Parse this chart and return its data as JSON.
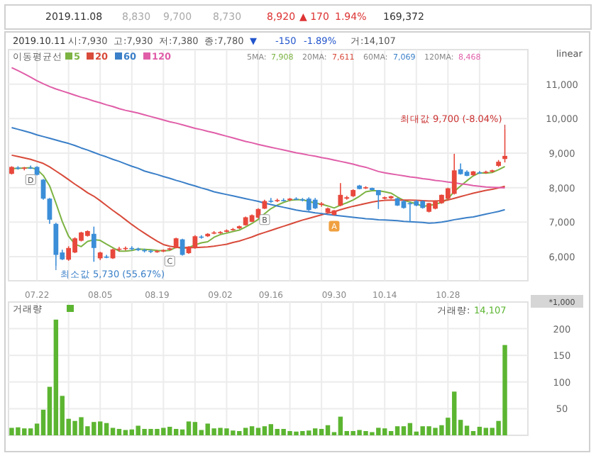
{
  "chart_data": [
    {
      "type": "candlestick",
      "categories": [
        null,
        null,
        null,
        null,
        "07.22",
        null,
        null,
        null,
        null,
        null,
        null,
        null,
        null,
        null,
        "08.05",
        null,
        null,
        null,
        null,
        null,
        null,
        null,
        null,
        "08.19",
        null,
        null,
        null,
        null,
        null,
        null,
        null,
        null,
        null,
        "09.02",
        null,
        null,
        null,
        null,
        null,
        null,
        null,
        "09.16",
        null,
        null,
        null,
        null,
        null,
        null,
        null,
        null,
        null,
        "09.30",
        null,
        null,
        null,
        null,
        null,
        null,
        null,
        "10.14",
        null,
        null,
        null,
        null,
        null,
        null,
        null,
        null,
        null,
        "10.28",
        null,
        null,
        null,
        null,
        null,
        null,
        null,
        null,
        null
      ],
      "ohlc": [
        [
          8400,
          8620,
          8380,
          8600
        ],
        [
          8580,
          8620,
          8520,
          8560
        ],
        [
          8560,
          8600,
          8500,
          8580
        ],
        [
          8580,
          8640,
          8540,
          8560
        ],
        [
          8600,
          8620,
          8350,
          8370
        ],
        [
          8230,
          8250,
          7650,
          7680
        ],
        [
          7680,
          7700,
          6950,
          7070
        ],
        [
          6950,
          6980,
          5730,
          6050
        ],
        [
          6120,
          6200,
          5900,
          5920
        ],
        [
          5910,
          6300,
          5880,
          6250
        ],
        [
          6120,
          6560,
          6100,
          6530
        ],
        [
          6460,
          6720,
          6440,
          6700
        ],
        [
          6600,
          6760,
          6580,
          6740
        ],
        [
          6660,
          6870,
          5850,
          6250
        ],
        [
          5950,
          6140,
          5900,
          6120
        ],
        [
          6000,
          6050,
          5950,
          5990
        ],
        [
          5950,
          6230,
          5930,
          6210
        ],
        [
          6200,
          6280,
          6150,
          6230
        ],
        [
          6240,
          6290,
          6180,
          6250
        ],
        [
          6250,
          6300,
          6180,
          6220
        ],
        [
          6230,
          6260,
          6160,
          6190
        ],
        [
          6190,
          6230,
          6120,
          6170
        ],
        [
          6170,
          6200,
          6100,
          6150
        ],
        [
          6150,
          6190,
          6110,
          6160
        ],
        [
          6150,
          6210,
          6130,
          6190
        ],
        [
          6200,
          6260,
          6180,
          6240
        ],
        [
          6250,
          6550,
          6240,
          6530
        ],
        [
          6500,
          6520,
          6030,
          6050
        ],
        [
          6100,
          6300,
          6080,
          6290
        ],
        [
          6250,
          6620,
          6230,
          6590
        ],
        [
          6580,
          6620,
          6520,
          6560
        ],
        [
          6590,
          6680,
          6570,
          6660
        ],
        [
          6680,
          6740,
          6650,
          6700
        ],
        [
          6700,
          6740,
          6660,
          6710
        ],
        [
          6720,
          6790,
          6700,
          6760
        ],
        [
          6770,
          6830,
          6750,
          6800
        ],
        [
          6820,
          6900,
          6800,
          6880
        ],
        [
          6910,
          7160,
          6900,
          7140
        ],
        [
          7010,
          7220,
          7000,
          7200
        ],
        [
          7130,
          7400,
          7110,
          7380
        ],
        [
          7390,
          7650,
          7380,
          7610
        ],
        [
          7620,
          7700,
          7560,
          7610
        ],
        [
          7610,
          7680,
          7580,
          7640
        ],
        [
          7640,
          7690,
          7600,
          7630
        ],
        [
          7640,
          7700,
          7610,
          7680
        ],
        [
          7680,
          7720,
          7640,
          7660
        ],
        [
          7660,
          7700,
          7600,
          7640
        ],
        [
          7680,
          7720,
          7320,
          7350
        ],
        [
          7650,
          7700,
          7380,
          7400
        ],
        [
          7500,
          7580,
          7450,
          7540
        ],
        [
          7280,
          7420,
          7250,
          7400
        ],
        [
          7210,
          7350,
          7190,
          7340
        ],
        [
          7480,
          8130,
          7460,
          7790
        ],
        [
          7680,
          7760,
          7650,
          7720
        ],
        [
          7750,
          7950,
          7730,
          7930
        ],
        [
          8060,
          8080,
          7950,
          7960
        ],
        [
          7990,
          8040,
          7960,
          8010
        ],
        [
          7990,
          8000,
          7920,
          7930
        ],
        [
          7930,
          7930,
          7380,
          7780
        ],
        [
          7680,
          7740,
          7660,
          7720
        ],
        [
          7690,
          7760,
          7670,
          7750
        ],
        [
          7690,
          7710,
          7470,
          7480
        ],
        [
          7610,
          7640,
          7390,
          7410
        ],
        [
          7550,
          7580,
          7000,
          7540
        ],
        [
          7610,
          7640,
          7460,
          7480
        ],
        [
          7610,
          7630,
          7390,
          7410
        ],
        [
          7300,
          7560,
          7280,
          7550
        ],
        [
          7390,
          7630,
          7370,
          7610
        ],
        [
          7550,
          7800,
          7530,
          7790
        ],
        [
          7680,
          8000,
          7660,
          7980
        ],
        [
          7820,
          8980,
          7800,
          8500
        ],
        [
          8530,
          8700,
          8380,
          8390
        ],
        [
          8460,
          8500,
          8330,
          8340
        ],
        [
          8360,
          8480,
          8340,
          8470
        ],
        [
          8440,
          8480,
          8400,
          8430
        ],
        [
          8430,
          8490,
          8410,
          8460
        ],
        [
          8460,
          8520,
          8440,
          8500
        ],
        [
          8630,
          8800,
          8600,
          8750
        ],
        [
          8830,
          9700,
          8730,
          8920
        ]
      ],
      "series": [
        {
          "name": "5",
          "type": "line",
          "color": "#7cb342",
          "values": [
            8550,
            8560,
            8570,
            8580,
            8530,
            8350,
            8050,
            7550,
            7020,
            6590,
            6360,
            6290,
            6440,
            6490,
            6470,
            6360,
            6260,
            6160,
            6160,
            6180,
            6220,
            6210,
            6200,
            6180,
            6170,
            6180,
            6270,
            6240,
            6260,
            6340,
            6400,
            6430,
            6560,
            6640,
            6680,
            6730,
            6770,
            6860,
            6960,
            7080,
            7240,
            7390,
            7490,
            7570,
            7630,
            7650,
            7650,
            7600,
            7550,
            7520,
            7470,
            7410,
            7490,
            7560,
            7640,
            7750,
            7880,
            7910,
            7908,
            7880,
            7840,
            7730,
            7630,
            7580,
            7530,
            7460,
            7480,
            7520,
            7570,
            7670,
            7890,
            8050,
            8200,
            8340,
            8430,
            8420,
            8440,
            8520,
            8610
          ]
        },
        {
          "name": "20",
          "type": "line",
          "color": "#d84a3a",
          "values": [
            8940,
            8900,
            8860,
            8820,
            8760,
            8700,
            8600,
            8480,
            8360,
            8230,
            8100,
            7980,
            7850,
            7750,
            7620,
            7480,
            7340,
            7210,
            7070,
            6930,
            6800,
            6680,
            6560,
            6450,
            6350,
            6300,
            6270,
            6260,
            6260,
            6260,
            6270,
            6280,
            6300,
            6330,
            6360,
            6410,
            6450,
            6510,
            6570,
            6640,
            6700,
            6760,
            6820,
            6880,
            6940,
            7000,
            7060,
            7110,
            7160,
            7210,
            7260,
            7300,
            7360,
            7410,
            7460,
            7500,
            7540,
            7580,
            7611,
            7630,
            7640,
            7640,
            7640,
            7640,
            7630,
            7620,
            7610,
            7610,
            7620,
            7640,
            7690,
            7740,
            7790,
            7840,
            7880,
            7920,
            7950,
            7990,
            8040
          ]
        },
        {
          "name": "60",
          "type": "line",
          "color": "#3a7fc8",
          "values": [
            9740,
            9690,
            9640,
            9590,
            9530,
            9480,
            9430,
            9380,
            9330,
            9280,
            9220,
            9150,
            9090,
            9020,
            8950,
            8890,
            8820,
            8760,
            8690,
            8620,
            8560,
            8480,
            8430,
            8380,
            8320,
            8270,
            8210,
            8160,
            8100,
            8050,
            7990,
            7940,
            7880,
            7840,
            7800,
            7760,
            7720,
            7680,
            7640,
            7600,
            7550,
            7510,
            7470,
            7430,
            7390,
            7350,
            7320,
            7300,
            7270,
            7250,
            7220,
            7200,
            7180,
            7160,
            7140,
            7120,
            7100,
            7090,
            7069,
            7060,
            7050,
            7040,
            7020,
            7010,
            7000,
            6990,
            6970,
            6980,
            7000,
            7030,
            7070,
            7100,
            7130,
            7150,
            7190,
            7230,
            7270,
            7310,
            7360
          ]
        },
        {
          "name": "120",
          "type": "line",
          "color": "#e05ea8",
          "values": [
            11480,
            11390,
            11300,
            11200,
            11100,
            11010,
            10930,
            10860,
            10800,
            10740,
            10680,
            10620,
            10570,
            10510,
            10460,
            10400,
            10350,
            10290,
            10240,
            10200,
            10160,
            10110,
            10060,
            10010,
            9960,
            9910,
            9870,
            9820,
            9770,
            9720,
            9680,
            9630,
            9590,
            9540,
            9490,
            9440,
            9390,
            9340,
            9300,
            9250,
            9210,
            9170,
            9130,
            9090,
            9050,
            9010,
            8980,
            8940,
            8910,
            8870,
            8840,
            8800,
            8760,
            8720,
            8680,
            8630,
            8590,
            8530,
            8468,
            8430,
            8400,
            8370,
            8340,
            8310,
            8290,
            8260,
            8240,
            8210,
            8190,
            8160,
            8140,
            8110,
            8090,
            8060,
            8040,
            8020,
            8010,
            8000,
            7990
          ]
        }
      ],
      "ylim": [
        5300,
        12000
      ],
      "yticks": [
        {
          "value": 6000,
          "label": "6,000"
        },
        {
          "value": 7000,
          "label": "7,000"
        },
        {
          "value": 8000,
          "label": "8,000"
        },
        {
          "value": 9000,
          "label": "9,000"
        },
        {
          "value": 10000,
          "label": "10,000"
        },
        {
          "value": 11000,
          "label": "11,000"
        }
      ],
      "grid": true,
      "legend": "top left",
      "legend_title": "이동평균선",
      "annotations": [
        "2019.11.08",
        "8,830",
        "9,700",
        "8,730",
        "8,920",
        "▲ 170",
        "1.94%",
        "169,372",
        "2019.10.11",
        "시:7,930",
        "고:7,930",
        "저:7,380",
        "종:7,780",
        "▼",
        "-150",
        "-1.89%",
        "거:14,107",
        "5MA:",
        "7,908",
        "20MA:",
        "7,611",
        "60MA:",
        "7,069",
        "120MA:",
        "8,468",
        "linear",
        "최대값 9,700 (-8.04%)",
        "최소값 5,730 (55.67%)",
        "A",
        "B",
        "C",
        "D"
      ]
    },
    {
      "type": "bar",
      "categories": [
        null,
        null,
        null,
        null,
        null,
        null,
        null,
        null,
        null,
        null,
        null,
        null,
        null,
        null,
        null,
        null,
        null,
        null,
        null,
        null,
        null,
        null,
        null,
        null,
        null,
        null,
        null,
        null,
        null,
        null,
        null,
        null,
        null,
        null,
        null,
        null,
        null,
        null,
        null,
        null,
        null,
        null,
        null,
        null,
        null,
        null,
        null,
        null,
        null,
        null,
        null,
        null,
        null,
        null,
        null,
        null,
        null,
        null,
        null,
        null,
        null,
        null,
        null,
        null,
        null,
        null,
        null,
        null,
        null,
        null,
        null,
        null,
        null,
        null,
        null,
        null,
        null,
        null,
        null
      ],
      "series": [
        {
          "name": "거래량",
          "color": "#5cb531",
          "values": [
            14,
            15,
            13,
            13,
            22,
            48,
            91,
            217,
            74,
            31,
            27,
            34,
            17,
            25,
            26,
            23,
            14,
            12,
            10,
            11,
            18,
            12,
            12,
            12,
            14,
            16,
            12,
            11,
            26,
            25,
            10,
            22,
            13,
            14,
            13,
            9,
            8,
            14,
            17,
            14,
            17,
            21,
            12,
            12,
            8,
            7,
            8,
            9,
            13,
            12,
            19,
            6,
            35,
            8,
            8,
            10,
            8,
            6,
            14.107,
            13,
            8,
            17,
            17,
            23,
            7,
            17,
            17,
            14,
            19,
            33,
            82,
            29,
            18,
            8,
            16,
            14,
            14,
            27,
            169.372
          ]
        }
      ],
      "ylim": [
        0,
        250
      ],
      "yticks": [
        50,
        100,
        150,
        200
      ],
      "grid": true,
      "legend": "top left",
      "tick_labels": "y",
      "annotations": [
        "거래량:",
        "14,107",
        "*1,000"
      ]
    }
  ]
}
